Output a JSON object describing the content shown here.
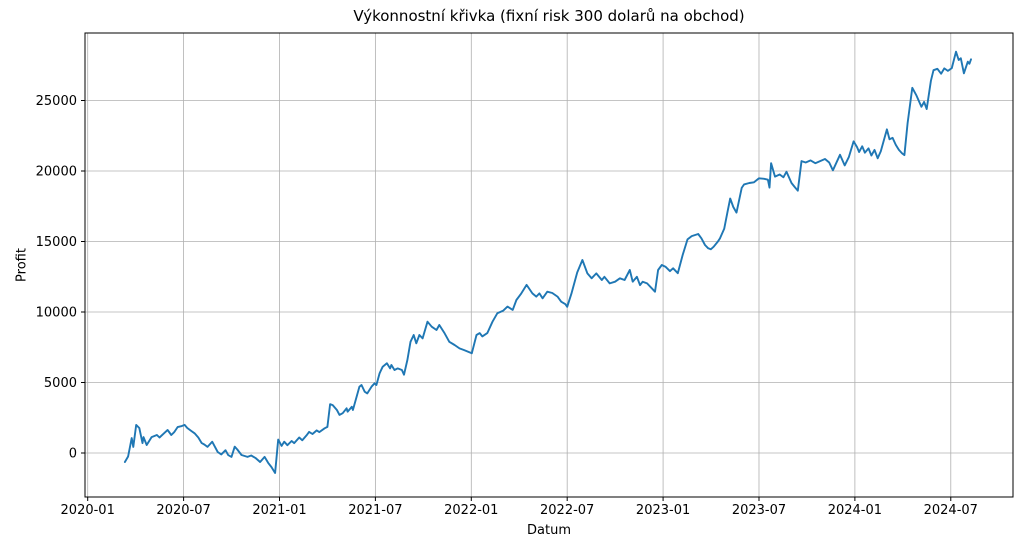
{
  "chart_data": {
    "type": "line",
    "title": "Výkonnostní křivka (fixní risk 300 dolarů na obchod)",
    "xlabel": "Datum",
    "ylabel": "Profit",
    "grid": true,
    "legend": false,
    "line_color": "#1f77b4",
    "grid_color": "#b0b0b0",
    "background_color": "#ffffff",
    "x_tick_labels": [
      "2020-01",
      "2020-07",
      "2021-01",
      "2021-07",
      "2022-01",
      "2022-07",
      "2023-01",
      "2023-07",
      "2024-01",
      "2024-07"
    ],
    "y_ticks": [
      0,
      5000,
      10000,
      15000,
      20000,
      25000
    ],
    "xlim": [
      "2019-12-21",
      "2024-11-05"
    ],
    "ylim": [
      -3100,
      29800
    ],
    "points": [
      [
        "2020-03-11",
        -640
      ],
      [
        "2020-03-17",
        -250
      ],
      [
        "2020-03-24",
        1060
      ],
      [
        "2020-03-27",
        430
      ],
      [
        "2020-04-02",
        1990
      ],
      [
        "2020-04-08",
        1770
      ],
      [
        "2020-04-14",
        700
      ],
      [
        "2020-04-16",
        1130
      ],
      [
        "2020-04-22",
        570
      ],
      [
        "2020-05-01",
        1130
      ],
      [
        "2020-05-11",
        1280
      ],
      [
        "2020-05-16",
        1100
      ],
      [
        "2020-05-26",
        1450
      ],
      [
        "2020-06-01",
        1630
      ],
      [
        "2020-06-08",
        1280
      ],
      [
        "2020-06-14",
        1500
      ],
      [
        "2020-06-20",
        1840
      ],
      [
        "2020-06-27",
        1900
      ],
      [
        "2020-07-03",
        1990
      ],
      [
        "2020-07-08",
        1770
      ],
      [
        "2020-07-16",
        1550
      ],
      [
        "2020-07-22",
        1400
      ],
      [
        "2020-07-29",
        1100
      ],
      [
        "2020-08-05",
        700
      ],
      [
        "2020-08-10",
        600
      ],
      [
        "2020-08-16",
        430
      ],
      [
        "2020-08-25",
        800
      ],
      [
        "2020-09-05",
        70
      ],
      [
        "2020-09-12",
        -100
      ],
      [
        "2020-09-20",
        200
      ],
      [
        "2020-09-25",
        -150
      ],
      [
        "2020-10-01",
        -280
      ],
      [
        "2020-10-07",
        450
      ],
      [
        "2020-10-12",
        250
      ],
      [
        "2020-10-20",
        -140
      ],
      [
        "2020-11-01",
        -280
      ],
      [
        "2020-11-08",
        -180
      ],
      [
        "2020-11-16",
        -350
      ],
      [
        "2020-11-25",
        -640
      ],
      [
        "2020-12-03",
        -280
      ],
      [
        "2020-12-10",
        -700
      ],
      [
        "2020-12-16",
        -990
      ],
      [
        "2020-12-23",
        -1420
      ],
      [
        "2020-12-29",
        950
      ],
      [
        "2021-01-05",
        500
      ],
      [
        "2021-01-10",
        800
      ],
      [
        "2021-01-16",
        550
      ],
      [
        "2021-01-24",
        850
      ],
      [
        "2021-01-29",
        700
      ],
      [
        "2021-02-08",
        1100
      ],
      [
        "2021-02-14",
        900
      ],
      [
        "2021-02-22",
        1250
      ],
      [
        "2021-02-27",
        1500
      ],
      [
        "2021-03-03",
        1350
      ],
      [
        "2021-03-11",
        1600
      ],
      [
        "2021-03-16",
        1480
      ],
      [
        "2021-03-26",
        1750
      ],
      [
        "2021-04-01",
        1850
      ],
      [
        "2021-04-06",
        3460
      ],
      [
        "2021-04-11",
        3400
      ],
      [
        "2021-04-19",
        3050
      ],
      [
        "2021-04-24",
        2700
      ],
      [
        "2021-04-30",
        2820
      ],
      [
        "2021-05-07",
        3170
      ],
      [
        "2021-05-09",
        2930
      ],
      [
        "2021-05-17",
        3280
      ],
      [
        "2021-05-19",
        3050
      ],
      [
        "2021-05-27",
        4110
      ],
      [
        "2021-06-01",
        4700
      ],
      [
        "2021-06-05",
        4820
      ],
      [
        "2021-06-11",
        4350
      ],
      [
        "2021-06-16",
        4230
      ],
      [
        "2021-06-24",
        4700
      ],
      [
        "2021-06-30",
        4940
      ],
      [
        "2021-07-03",
        4820
      ],
      [
        "2021-07-09",
        5650
      ],
      [
        "2021-07-15",
        6120
      ],
      [
        "2021-07-23",
        6360
      ],
      [
        "2021-07-29",
        6000
      ],
      [
        "2021-08-01",
        6240
      ],
      [
        "2021-08-07",
        5890
      ],
      [
        "2021-08-13",
        6000
      ],
      [
        "2021-08-21",
        5890
      ],
      [
        "2021-08-25",
        5550
      ],
      [
        "2021-09-01",
        6600
      ],
      [
        "2021-09-07",
        7890
      ],
      [
        "2021-09-13",
        8370
      ],
      [
        "2021-09-18",
        7780
      ],
      [
        "2021-09-24",
        8370
      ],
      [
        "2021-09-30",
        8130
      ],
      [
        "2021-10-09",
        9310
      ],
      [
        "2021-10-17",
        8960
      ],
      [
        "2021-10-26",
        8720
      ],
      [
        "2021-11-01",
        9080
      ],
      [
        "2021-11-11",
        8490
      ],
      [
        "2021-11-20",
        7890
      ],
      [
        "2021-11-30",
        7660
      ],
      [
        "2021-12-09",
        7420
      ],
      [
        "2021-12-18",
        7300
      ],
      [
        "2022-01-02",
        7070
      ],
      [
        "2022-01-11",
        8370
      ],
      [
        "2022-01-17",
        8500
      ],
      [
        "2022-01-22",
        8270
      ],
      [
        "2022-02-01",
        8500
      ],
      [
        "2022-02-11",
        9310
      ],
      [
        "2022-02-20",
        9910
      ],
      [
        "2022-03-01",
        10100
      ],
      [
        "2022-03-09",
        10380
      ],
      [
        "2022-03-19",
        10150
      ],
      [
        "2022-03-26",
        10850
      ],
      [
        "2022-04-05",
        11320
      ],
      [
        "2022-04-15",
        11920
      ],
      [
        "2022-04-26",
        11320
      ],
      [
        "2022-05-03",
        11090
      ],
      [
        "2022-05-09",
        11320
      ],
      [
        "2022-05-15",
        10970
      ],
      [
        "2022-05-24",
        11440
      ],
      [
        "2022-06-03",
        11350
      ],
      [
        "2022-06-13",
        11090
      ],
      [
        "2022-06-20",
        10730
      ],
      [
        "2022-06-28",
        10550
      ],
      [
        "2022-07-01",
        10370
      ],
      [
        "2022-07-09",
        11300
      ],
      [
        "2022-07-20",
        12800
      ],
      [
        "2022-07-30",
        13690
      ],
      [
        "2022-08-09",
        12740
      ],
      [
        "2022-08-17",
        12390
      ],
      [
        "2022-08-26",
        12740
      ],
      [
        "2022-09-06",
        12270
      ],
      [
        "2022-09-11",
        12500
      ],
      [
        "2022-09-21",
        12030
      ],
      [
        "2022-10-01",
        12150
      ],
      [
        "2022-10-10",
        12390
      ],
      [
        "2022-10-19",
        12270
      ],
      [
        "2022-10-29",
        12980
      ],
      [
        "2022-11-04",
        12150
      ],
      [
        "2022-11-12",
        12500
      ],
      [
        "2022-11-18",
        11910
      ],
      [
        "2022-11-23",
        12150
      ],
      [
        "2022-12-01",
        12030
      ],
      [
        "2022-12-10",
        11680
      ],
      [
        "2022-12-16",
        11440
      ],
      [
        "2022-12-22",
        12980
      ],
      [
        "2022-12-29",
        13330
      ],
      [
        "2023-01-06",
        13200
      ],
      [
        "2023-01-14",
        12900
      ],
      [
        "2023-01-20",
        13100
      ],
      [
        "2023-01-29",
        12750
      ],
      [
        "2023-02-08",
        14050
      ],
      [
        "2023-02-17",
        15150
      ],
      [
        "2023-02-25",
        15380
      ],
      [
        "2023-03-07",
        15530
      ],
      [
        "2023-03-13",
        15230
      ],
      [
        "2023-03-20",
        14750
      ],
      [
        "2023-03-26",
        14520
      ],
      [
        "2023-03-31",
        14450
      ],
      [
        "2023-04-06",
        14630
      ],
      [
        "2023-04-14",
        15000
      ],
      [
        "2023-04-18",
        15230
      ],
      [
        "2023-04-26",
        15900
      ],
      [
        "2023-05-02",
        17100
      ],
      [
        "2023-05-07",
        18050
      ],
      [
        "2023-05-13",
        17450
      ],
      [
        "2023-05-19",
        17050
      ],
      [
        "2023-05-29",
        18800
      ],
      [
        "2023-06-03",
        19050
      ],
      [
        "2023-06-13",
        19150
      ],
      [
        "2023-06-22",
        19200
      ],
      [
        "2023-07-01",
        19480
      ],
      [
        "2023-07-11",
        19450
      ],
      [
        "2023-07-18",
        19380
      ],
      [
        "2023-07-21",
        18820
      ],
      [
        "2023-07-24",
        20550
      ],
      [
        "2023-08-01",
        19600
      ],
      [
        "2023-08-10",
        19750
      ],
      [
        "2023-08-17",
        19550
      ],
      [
        "2023-08-23",
        19950
      ],
      [
        "2023-09-02",
        19150
      ],
      [
        "2023-09-08",
        18870
      ],
      [
        "2023-09-14",
        18600
      ],
      [
        "2023-09-21",
        20700
      ],
      [
        "2023-09-29",
        20600
      ],
      [
        "2023-10-08",
        20750
      ],
      [
        "2023-10-17",
        20550
      ],
      [
        "2023-10-26",
        20700
      ],
      [
        "2023-11-05",
        20850
      ],
      [
        "2023-11-13",
        20600
      ],
      [
        "2023-11-20",
        20050
      ],
      [
        "2023-12-03",
        21150
      ],
      [
        "2023-12-12",
        20400
      ],
      [
        "2023-12-20",
        21000
      ],
      [
        "2023-12-29",
        22100
      ],
      [
        "2024-01-05",
        21700
      ],
      [
        "2024-01-09",
        21350
      ],
      [
        "2024-01-15",
        21750
      ],
      [
        "2024-01-20",
        21300
      ],
      [
        "2024-01-27",
        21600
      ],
      [
        "2024-02-02",
        21100
      ],
      [
        "2024-02-08",
        21500
      ],
      [
        "2024-02-14",
        20900
      ],
      [
        "2024-02-20",
        21400
      ],
      [
        "2024-03-01",
        22950
      ],
      [
        "2024-03-06",
        22250
      ],
      [
        "2024-03-12",
        22350
      ],
      [
        "2024-03-18",
        21850
      ],
      [
        "2024-03-24",
        21500
      ],
      [
        "2024-03-30",
        21250
      ],
      [
        "2024-04-04",
        21130
      ],
      [
        "2024-04-10",
        23400
      ],
      [
        "2024-04-19",
        25900
      ],
      [
        "2024-04-27",
        25350
      ],
      [
        "2024-05-06",
        24550
      ],
      [
        "2024-05-11",
        24900
      ],
      [
        "2024-05-16",
        24400
      ],
      [
        "2024-05-24",
        26400
      ],
      [
        "2024-05-29",
        27150
      ],
      [
        "2024-06-06",
        27250
      ],
      [
        "2024-06-13",
        26900
      ],
      [
        "2024-06-19",
        27280
      ],
      [
        "2024-06-26",
        27100
      ],
      [
        "2024-07-03",
        27300
      ],
      [
        "2024-07-11",
        28460
      ],
      [
        "2024-07-16",
        27870
      ],
      [
        "2024-07-20",
        28000
      ],
      [
        "2024-07-26",
        26930
      ],
      [
        "2024-08-03",
        27750
      ],
      [
        "2024-08-06",
        27600
      ],
      [
        "2024-08-09",
        27920
      ]
    ]
  }
}
